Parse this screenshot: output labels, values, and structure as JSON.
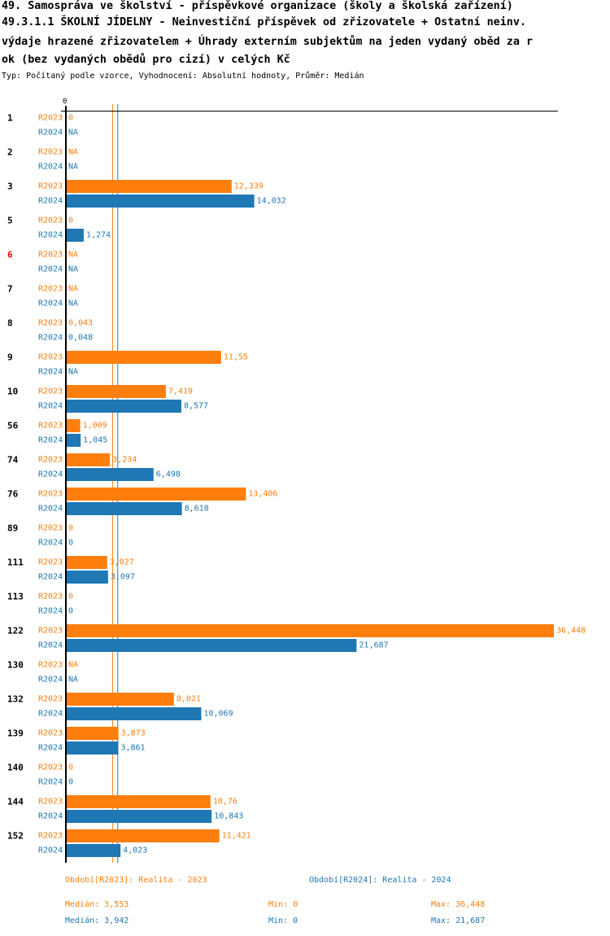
{
  "header": {
    "title_lines": [
      "49. Samospráva ve školství - příspěvkové organizace (školy a školská zařízení)",
      "49.3.1.1 ŠKOLNÍ JÍDELNY - Neinvestiční příspěvek od zřizovatele + Ostatní neinv.",
      "výdaje hrazené zřizovatelem + Úhrady externím subjektům na jeden vydaný oběd za r",
      "ok (bez vydaných obědů pro cizí) v celých Kč"
    ],
    "subtitle": "Typ: Počítaný podle vzorce, Vyhodnocení: Absolutní hodnoty, Průměr: Medián"
  },
  "colors": {
    "r2023": "#ff7f0e",
    "r2024": "#1f77b4",
    "highlight_label": "#ff0000",
    "axis": "#000000"
  },
  "chart_data": {
    "type": "bar",
    "orientation": "horizontal",
    "axis_zero_label": "0",
    "xlim": [
      0,
      36.448
    ],
    "series_names": [
      "R2023",
      "R2024"
    ],
    "categories": [
      {
        "label": "1",
        "highlight": false,
        "R2023": 0,
        "R2024": null,
        "R2023_text": "0",
        "R2024_text": "NA"
      },
      {
        "label": "2",
        "highlight": false,
        "R2023": null,
        "R2024": null,
        "R2023_text": "NA",
        "R2024_text": "NA"
      },
      {
        "label": "3",
        "highlight": false,
        "R2023": 12.339,
        "R2024": 14.032,
        "R2023_text": "12,339",
        "R2024_text": "14,032"
      },
      {
        "label": "5",
        "highlight": false,
        "R2023": 0,
        "R2024": 1.274,
        "R2023_text": "0",
        "R2024_text": "1,274"
      },
      {
        "label": "6",
        "highlight": true,
        "R2023": null,
        "R2024": null,
        "R2023_text": "NA",
        "R2024_text": "NA"
      },
      {
        "label": "7",
        "highlight": false,
        "R2023": null,
        "R2024": null,
        "R2023_text": "NA",
        "R2024_text": "NA"
      },
      {
        "label": "8",
        "highlight": false,
        "R2023": 0.043,
        "R2024": 0.048,
        "R2023_text": "0,043",
        "R2024_text": "0,048"
      },
      {
        "label": "9",
        "highlight": false,
        "R2023": 11.55,
        "R2024": null,
        "R2023_text": "11,55",
        "R2024_text": "NA"
      },
      {
        "label": "10",
        "highlight": false,
        "R2023": 7.419,
        "R2024": 8.577,
        "R2023_text": "7,419",
        "R2024_text": "8,577"
      },
      {
        "label": "56",
        "highlight": false,
        "R2023": 1.009,
        "R2024": 1.045,
        "R2023_text": "1,009",
        "R2024_text": "1,045"
      },
      {
        "label": "74",
        "highlight": false,
        "R2023": 3.234,
        "R2024": 6.498,
        "R2023_text": "3,234",
        "R2024_text": "6,498"
      },
      {
        "label": "76",
        "highlight": false,
        "R2023": 13.406,
        "R2024": 8.618,
        "R2023_text": "13,406",
        "R2024_text": "8,618"
      },
      {
        "label": "89",
        "highlight": false,
        "R2023": 0,
        "R2024": 0,
        "R2023_text": "0",
        "R2024_text": "0"
      },
      {
        "label": "111",
        "highlight": false,
        "R2023": 3.027,
        "R2024": 3.097,
        "R2023_text": "3,027",
        "R2024_text": "3,097"
      },
      {
        "label": "113",
        "highlight": false,
        "R2023": 0,
        "R2024": 0,
        "R2023_text": "0",
        "R2024_text": "0"
      },
      {
        "label": "122",
        "highlight": false,
        "R2023": 36.448,
        "R2024": 21.687,
        "R2023_text": "36,448",
        "R2024_text": "21,687"
      },
      {
        "label": "130",
        "highlight": false,
        "R2023": null,
        "R2024": null,
        "R2023_text": "NA",
        "R2024_text": "NA"
      },
      {
        "label": "132",
        "highlight": false,
        "R2023": 8.021,
        "R2024": 10.069,
        "R2023_text": "8,021",
        "R2024_text": "10,069"
      },
      {
        "label": "139",
        "highlight": false,
        "R2023": 3.873,
        "R2024": 3.861,
        "R2023_text": "3,873",
        "R2024_text": "3,861"
      },
      {
        "label": "140",
        "highlight": false,
        "R2023": 0,
        "R2024": 0,
        "R2023_text": "0",
        "R2024_text": "0"
      },
      {
        "label": "144",
        "highlight": false,
        "R2023": 10.76,
        "R2024": 10.843,
        "R2023_text": "10,76",
        "R2024_text": "10,843"
      },
      {
        "label": "152",
        "highlight": false,
        "R2023": 11.421,
        "R2024": 4.023,
        "R2023_text": "11,421",
        "R2024_text": "4,023"
      }
    ],
    "median_lines": {
      "R2023": 3.553,
      "R2024": 3.942
    }
  },
  "legend": {
    "r2023_period": "Období[R2023]: Realita - 2023",
    "r2024_period": "Období[R2024]: Realita - 2024",
    "r2023_median": "Medián: 3,553",
    "r2023_min": "Min: 0",
    "r2023_max": "Max: 36,448",
    "r2024_median": "Medián: 3,942",
    "r2024_min": "Min: 0",
    "r2024_max": "Max: 21,687"
  }
}
